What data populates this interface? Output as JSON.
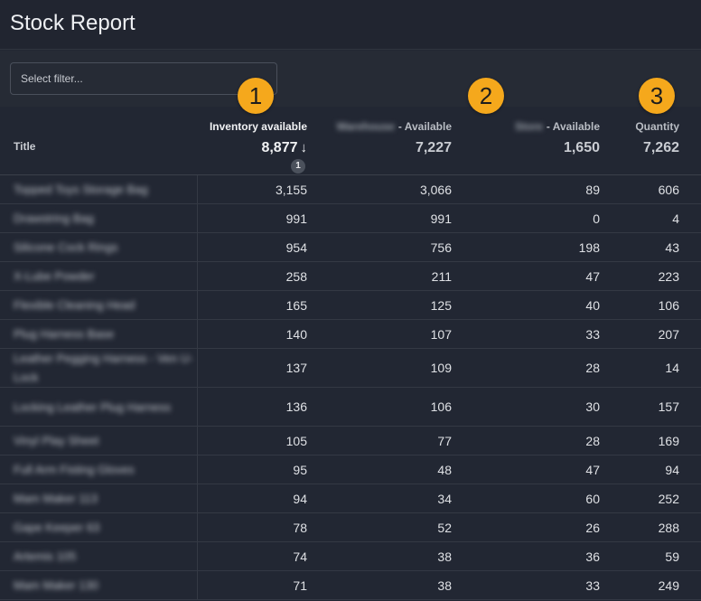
{
  "page": {
    "title": "Stock Report"
  },
  "filter": {
    "placeholder": "Select filter..."
  },
  "badges": [
    "1",
    "2",
    "3"
  ],
  "table": {
    "title_header": "Title",
    "columns": [
      {
        "label": "Inventory available",
        "blurred_prefix": "",
        "total": "8,877",
        "sorted": "desc",
        "sort_index": "1"
      },
      {
        "label": "- Available",
        "blurred_prefix": "Warehouse",
        "total": "7,227"
      },
      {
        "label": "- Available",
        "blurred_prefix": "Store",
        "total": "1,650"
      },
      {
        "label": "Quantity",
        "blurred_prefix": "",
        "total": "7,262"
      }
    ],
    "rows": [
      {
        "title": "Topped Toys Storage Bag",
        "inv": "3,155",
        "a": "3,066",
        "b": "89",
        "qty": "606"
      },
      {
        "title": "Drawstring Bag",
        "inv": "991",
        "a": "991",
        "b": "0",
        "qty": "4"
      },
      {
        "title": "Silicone Cock Rings",
        "inv": "954",
        "a": "756",
        "b": "198",
        "qty": "43"
      },
      {
        "title": "X-Lube Powder",
        "inv": "258",
        "a": "211",
        "b": "47",
        "qty": "223"
      },
      {
        "title": "Flexible Cleaning Head",
        "inv": "165",
        "a": "125",
        "b": "40",
        "qty": "106"
      },
      {
        "title": "Plug Harness Base",
        "inv": "140",
        "a": "107",
        "b": "33",
        "qty": "207"
      },
      {
        "title": "Leather Pegging Harness - Ven U-Lock",
        "inv": "137",
        "a": "109",
        "b": "28",
        "qty": "14",
        "tall": true
      },
      {
        "title": "Locking Leather Plug Harness",
        "inv": "136",
        "a": "106",
        "b": "30",
        "qty": "157",
        "tall": true
      },
      {
        "title": "Vinyl Play Sheet",
        "inv": "105",
        "a": "77",
        "b": "28",
        "qty": "169"
      },
      {
        "title": "Full Arm Fisting Gloves",
        "inv": "95",
        "a": "48",
        "b": "47",
        "qty": "94"
      },
      {
        "title": "Mam Maker 113",
        "inv": "94",
        "a": "34",
        "b": "60",
        "qty": "252"
      },
      {
        "title": "Gape Keeper 63",
        "inv": "78",
        "a": "52",
        "b": "26",
        "qty": "288"
      },
      {
        "title": "Artemis 105",
        "inv": "74",
        "a": "38",
        "b": "36",
        "qty": "59"
      },
      {
        "title": "Mam Maker 130",
        "inv": "71",
        "a": "38",
        "b": "33",
        "qty": "249"
      }
    ]
  }
}
